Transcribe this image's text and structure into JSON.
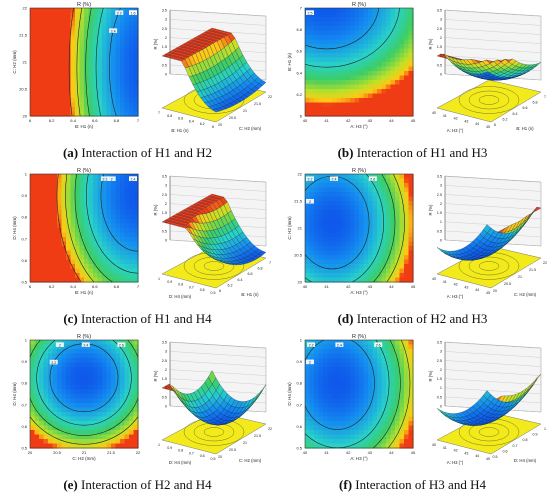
{
  "chart_data": [
    {
      "type": "heatmap",
      "letter": "(a)",
      "caption": "Interaction of H1 and H2",
      "contour": {
        "title": "R (%)",
        "xlabel": "B: H1 (n)",
        "ylabel": "C: H2 (mm)",
        "xticks": [
          "6",
          "6.2",
          "6.4",
          "6.6",
          "6.8",
          "7"
        ],
        "yticks": [
          "20",
          "20.5",
          "21",
          "21.5",
          "22"
        ],
        "contour_labels": [
          "2.4",
          "2.2",
          "2",
          "1.8",
          "1.6"
        ]
      },
      "surface": {
        "zlabel": "R (%)",
        "xlabel": "B: H1 (n)",
        "ylabel": "C: H2 (mm)",
        "zticks": [
          "0",
          "0.5",
          "1",
          "1.5",
          "2",
          "2.5",
          "3",
          "3.5"
        ],
        "xticks": [
          "7",
          "6.8",
          "6.6",
          "6.4",
          "6.2",
          "6"
        ],
        "yticks": [
          "20",
          "20.5",
          "21",
          "21.5",
          "22"
        ]
      }
    },
    {
      "type": "heatmap",
      "letter": "(b)",
      "caption": "Interaction of H1 and H3",
      "contour": {
        "title": "R (%)",
        "xlabel": "A: H3 (°)",
        "ylabel": "B: H1 (n)",
        "xticks": [
          "40",
          "41",
          "42",
          "43",
          "44",
          "45"
        ],
        "yticks": [
          "6",
          "6.2",
          "6.4",
          "6.6",
          "6.8",
          "7"
        ],
        "contour_labels": [
          "2",
          "2.5"
        ]
      },
      "surface": {
        "zlabel": "R (%)",
        "xlabel": "A: H3 (°)",
        "ylabel": "B: H1 (n)",
        "zticks": [
          "0",
          "0.5",
          "1",
          "1.5",
          "2",
          "2.5",
          "3",
          "3.5"
        ],
        "xticks": [
          "40",
          "41",
          "42",
          "43",
          "44",
          "45"
        ],
        "yticks": [
          "6",
          "6.2",
          "6.4",
          "6.6",
          "6.8",
          "7"
        ]
      }
    },
    {
      "type": "heatmap",
      "letter": "(c)",
      "caption": "Interaction of H1 and H4",
      "contour": {
        "title": "R (%)",
        "xlabel": "B: H1 (n)",
        "ylabel": "D: H4 (mm)",
        "xticks": [
          "6",
          "6.2",
          "6.4",
          "6.6",
          "6.8",
          "7"
        ],
        "yticks": [
          "0.5",
          "0.6",
          "0.7",
          "0.8",
          "0.9",
          "1"
        ],
        "contour_labels": [
          "2.2",
          "2",
          "1.8",
          "1.6",
          "2.4"
        ]
      },
      "surface": {
        "zlabel": "R (%)",
        "xlabel": "D: H4 (mm)",
        "ylabel": "B: H1 (n)",
        "zticks": [
          "0",
          "0.5",
          "1",
          "1.5",
          "2",
          "2.5",
          "3",
          "3.5"
        ],
        "xticks": [
          "1",
          "0.9",
          "0.8",
          "0.7",
          "0.6",
          "0.5"
        ],
        "yticks": [
          "6",
          "6.2",
          "6.4",
          "6.6",
          "6.8",
          "7"
        ]
      }
    },
    {
      "type": "heatmap",
      "letter": "(d)",
      "caption": "Interaction of H2 and H3",
      "contour": {
        "title": "R (%)",
        "xlabel": "A: H3 (°)",
        "ylabel": "C: H2 (mm)",
        "xticks": [
          "40",
          "41",
          "42",
          "43",
          "44",
          "45"
        ],
        "yticks": [
          "20",
          "20.5",
          "21",
          "21.5",
          "22"
        ],
        "contour_labels": [
          "2",
          "2.2",
          "2.4",
          "2.6"
        ]
      },
      "surface": {
        "zlabel": "R (%)",
        "xlabel": "A: H3 (°)",
        "ylabel": "C: H2 (mm)",
        "zticks": [
          "0",
          "0.5",
          "1",
          "1.5",
          "2",
          "2.5",
          "3",
          "3.5"
        ],
        "xticks": [
          "40",
          "41",
          "42",
          "43",
          "44",
          "45"
        ],
        "yticks": [
          "20",
          "20.5",
          "21",
          "21.5",
          "22"
        ]
      }
    },
    {
      "type": "heatmap",
      "letter": "(e)",
      "caption": "Interaction of H2 and H4",
      "contour": {
        "title": "R (%)",
        "xlabel": "C: H2 (mm)",
        "ylabel": "D: H4 (mm)",
        "xticks": [
          "20",
          "20.5",
          "21",
          "21.5",
          "22"
        ],
        "yticks": [
          "0.5",
          "0.6",
          "0.7",
          "0.8",
          "0.9",
          "1"
        ],
        "contour_labels": [
          "2.2",
          "2",
          "2.4",
          "2.6"
        ]
      },
      "surface": {
        "zlabel": "R (%)",
        "xlabel": "D: H4 (mm)",
        "ylabel": "C: H2 (mm)",
        "zticks": [
          "0",
          "0.5",
          "1",
          "1.5",
          "2",
          "2.5",
          "3",
          "3.5"
        ],
        "xticks": [
          "1",
          "0.9",
          "0.8",
          "0.7",
          "0.6",
          "0.5"
        ],
        "yticks": [
          "20",
          "20.5",
          "21",
          "21.5",
          "22"
        ]
      }
    },
    {
      "type": "heatmap",
      "letter": "(f)",
      "caption": "Interaction of H3 and H4",
      "contour": {
        "title": "R (%)",
        "xlabel": "A: H3 (°)",
        "ylabel": "D: H4 (mm)",
        "xticks": [
          "40",
          "41",
          "42",
          "43",
          "44",
          "45"
        ],
        "yticks": [
          "0.5",
          "0.6",
          "0.7",
          "0.8",
          "0.9",
          "1"
        ],
        "contour_labels": [
          "2",
          "2.2",
          "2.4",
          "2.6"
        ]
      },
      "surface": {
        "zlabel": "R (%)",
        "xlabel": "A: H3 (°)",
        "ylabel": "D: H4 (mm)",
        "zticks": [
          "0",
          "0.5",
          "1",
          "1.5",
          "2",
          "2.5",
          "3",
          "3.5"
        ],
        "xticks": [
          "40",
          "41",
          "42",
          "43",
          "44",
          "45"
        ],
        "yticks": [
          "0.5",
          "0.6",
          "0.7",
          "0.8",
          "0.9",
          "1"
        ]
      }
    }
  ]
}
